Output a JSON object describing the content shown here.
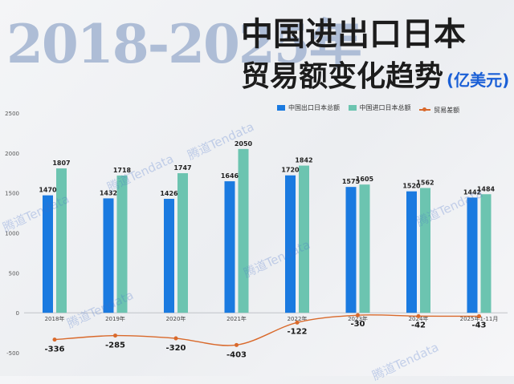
{
  "header": {
    "big_years": "2018-2025年",
    "title_line1": "中国进出口日本",
    "title_line2": "贸易额变化趋势",
    "unit": "(亿美元)"
  },
  "watermark": "腾道Tendata",
  "colors": {
    "export": "#1a7ae0",
    "import": "#6cc4b0",
    "balance": "#d9692b"
  },
  "chart_data": {
    "type": "bar",
    "categories": [
      "2018年",
      "2019年",
      "2020年",
      "2021年",
      "2022年",
      "2023年",
      "2024年",
      "2025年1-11月"
    ],
    "series": [
      {
        "name": "中国出口日本总额",
        "type": "bar",
        "values": [
          1470,
          1432,
          1426,
          1646,
          1720,
          1575,
          1520,
          1442
        ]
      },
      {
        "name": "中国进口日本总额",
        "type": "bar",
        "values": [
          1807,
          1718,
          1747,
          2050,
          1842,
          1605,
          1562,
          1484
        ]
      },
      {
        "name": "贸易差额",
        "type": "line",
        "values": [
          -336,
          -285,
          -320,
          -403,
          -122,
          -30,
          -42,
          -43
        ]
      }
    ],
    "y_ticks": [
      -500,
      0,
      500,
      1000,
      1500,
      2000,
      2500
    ],
    "ylim": [
      -500,
      2500
    ],
    "grid": false,
    "legend_position": "top-right"
  }
}
